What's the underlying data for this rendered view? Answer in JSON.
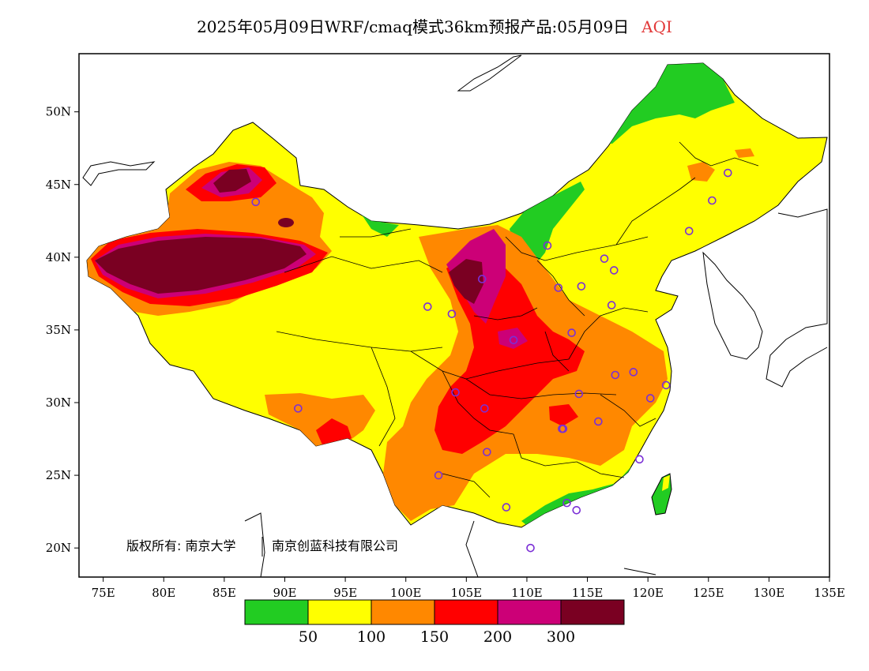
{
  "title": {
    "main": "2025年05月09日WRF/cmaq模式36km预报产品:05月09日",
    "variable": "AQI",
    "variable_color": "#e23a3a"
  },
  "axes": {
    "x_ticks": [
      "75E",
      "80E",
      "85E",
      "90E",
      "95E",
      "100E",
      "105E",
      "110E",
      "115E",
      "120E",
      "125E",
      "130E",
      "135E"
    ],
    "y_ticks": [
      "20N",
      "25N",
      "30N",
      "35N",
      "40N",
      "45N",
      "50N"
    ],
    "lon_range": [
      73,
      135
    ],
    "lat_range": [
      18,
      54
    ]
  },
  "copyright": {
    "part1": "版权所有: 南京大学",
    "part2": "南京创蓝科技有限公司"
  },
  "legend": {
    "colors": [
      "#22cc22",
      "#ffff00",
      "#ff8800",
      "#ff0000",
      "#cc0077",
      "#7a0022"
    ],
    "labels": [
      "50",
      "100",
      "150",
      "200",
      "300"
    ]
  },
  "colors": {
    "good": "#22cc22",
    "moderate": "#ffff00",
    "sensitive": "#ff8800",
    "unhealthy": "#ff0000",
    "very_unhealthy": "#cc0077",
    "hazardous": "#7a0022",
    "station_marker": "#7b2fd6"
  },
  "stations": [
    [
      87.6,
      43.8
    ],
    [
      91.1,
      29.6
    ],
    [
      101.8,
      36.6
    ],
    [
      103.8,
      36.1
    ],
    [
      106.3,
      38.5
    ],
    [
      104.1,
      30.7
    ],
    [
      106.5,
      29.6
    ],
    [
      102.7,
      25.0
    ],
    [
      106.7,
      26.6
    ],
    [
      108.3,
      22.8
    ],
    [
      110.3,
      20.0
    ],
    [
      113.3,
      23.1
    ],
    [
      114.1,
      22.6
    ],
    [
      113.0,
      28.2
    ],
    [
      114.3,
      30.6
    ],
    [
      115.9,
      28.7
    ],
    [
      117.3,
      31.9
    ],
    [
      118.8,
      32.1
    ],
    [
      120.2,
      30.3
    ],
    [
      121.5,
      31.2
    ],
    [
      119.3,
      26.1
    ],
    [
      108.9,
      34.3
    ],
    [
      112.6,
      37.9
    ],
    [
      113.7,
      34.8
    ],
    [
      117.0,
      36.7
    ],
    [
      114.5,
      38.0
    ],
    [
      116.4,
      39.9
    ],
    [
      117.2,
      39.1
    ],
    [
      111.7,
      40.8
    ],
    [
      123.4,
      41.8
    ],
    [
      125.3,
      43.9
    ],
    [
      126.6,
      45.8
    ],
    [
      112.9,
      28.2
    ]
  ]
}
